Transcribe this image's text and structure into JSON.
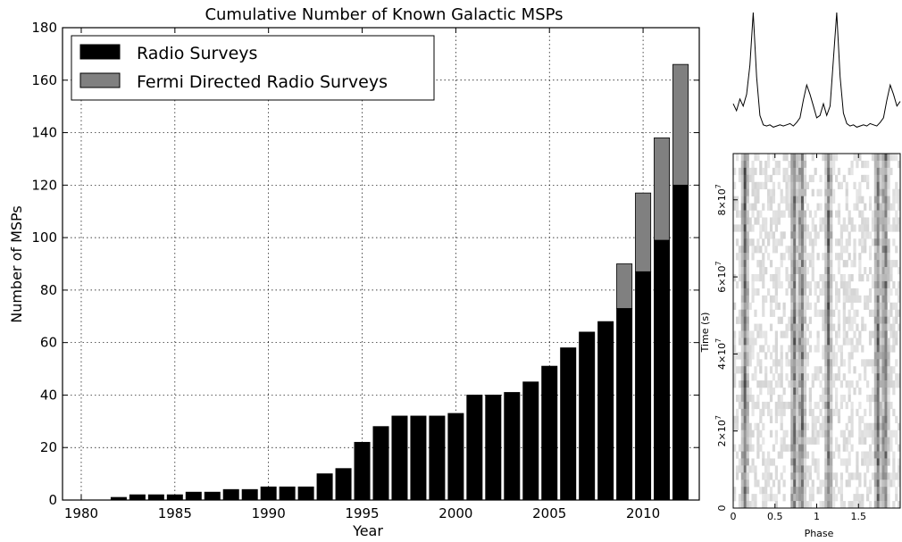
{
  "chart_data": [
    {
      "type": "bar",
      "stacked": true,
      "title": "Cumulative Number of Known Galactic MSPs",
      "xlabel": "Year",
      "ylabel": "Number of MSPs",
      "xlim": [
        1979,
        2013
      ],
      "ylim": [
        0,
        180
      ],
      "x_ticks": [
        "1980",
        "1985",
        "1990",
        "1995",
        "2000",
        "2005",
        "2010"
      ],
      "y_ticks": [
        "0",
        "20",
        "40",
        "60",
        "80",
        "100",
        "120",
        "140",
        "160",
        "180"
      ],
      "grid": true,
      "legend_position": "top-left",
      "x": [
        1982,
        1983,
        1984,
        1985,
        1986,
        1987,
        1988,
        1989,
        1990,
        1991,
        1992,
        1993,
        1994,
        1995,
        1996,
        1997,
        1998,
        1999,
        2000,
        2001,
        2002,
        2003,
        2004,
        2005,
        2006,
        2007,
        2008,
        2009,
        2010,
        2011,
        2012
      ],
      "series": [
        {
          "name": "Radio Surveys",
          "color": "#000000",
          "values": [
            1,
            2,
            2,
            2,
            3,
            3,
            4,
            4,
            5,
            5,
            5,
            10,
            12,
            22,
            28,
            32,
            32,
            32,
            33,
            40,
            40,
            41,
            45,
            51,
            58,
            64,
            68,
            73,
            87,
            99,
            120
          ]
        },
        {
          "name": "Fermi Directed Radio Surveys",
          "color": "#808080",
          "values": [
            0,
            0,
            0,
            0,
            0,
            0,
            0,
            0,
            0,
            0,
            0,
            0,
            0,
            0,
            0,
            0,
            0,
            0,
            0,
            0,
            0,
            0,
            0,
            0,
            0,
            0,
            0,
            17,
            30,
            39,
            46
          ]
        }
      ]
    },
    {
      "type": "line",
      "title": "",
      "xlabel": "",
      "ylabel": "",
      "xlim": [
        0,
        2
      ],
      "x_range": [
        0,
        2
      ],
      "y_values": [
        0.22,
        0.16,
        0.26,
        0.2,
        0.3,
        0.55,
        1.0,
        0.45,
        0.12,
        0.04,
        0.03,
        0.04,
        0.02,
        0.03,
        0.04,
        0.03,
        0.04,
        0.05,
        0.03,
        0.06,
        0.1,
        0.25,
        0.38,
        0.3,
        0.2,
        0.1,
        0.12,
        0.22,
        0.12,
        0.2,
        0.6,
        1.0,
        0.45,
        0.14,
        0.05,
        0.03,
        0.04,
        0.02,
        0.03,
        0.04,
        0.03,
        0.05,
        0.04,
        0.03,
        0.06,
        0.1,
        0.25,
        0.38,
        0.3,
        0.2,
        0.24
      ]
    },
    {
      "type": "heatmap",
      "xlabel": "Phase",
      "ylabel": "Time (s)",
      "x_ticks": [
        "0",
        "0.5",
        "1",
        "1.5"
      ],
      "y_tick_values": [
        0,
        20000000,
        40000000,
        60000000,
        80000000
      ],
      "y_tick_labels": [
        "0",
        "2×10",
        "4×10",
        "6×10",
        "8×10"
      ],
      "y_tick_exponent": "7",
      "xlim": [
        0,
        2
      ],
      "ylim": [
        0,
        92000000
      ],
      "colormap": "grayscale-inverted",
      "intensity_rows": 50,
      "intensity_bins": 64,
      "peak_phases": [
        0.14,
        0.73,
        0.82,
        1.14,
        1.73,
        1.82
      ]
    }
  ]
}
